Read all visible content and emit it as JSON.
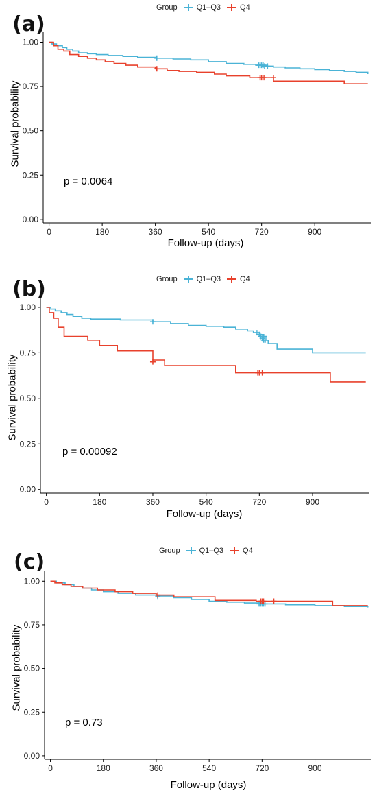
{
  "chart_data": [
    {
      "panel": "(a)",
      "type": "line",
      "step": true,
      "xlabel": "Follow-up (days)",
      "ylabel": "Survival probability",
      "xlim": [
        -20,
        1090
      ],
      "ylim": [
        -0.02,
        1.06
      ],
      "xticks": [
        0,
        180,
        360,
        540,
        720,
        900
      ],
      "yticks": [
        0.0,
        0.25,
        0.5,
        0.75,
        1.0
      ],
      "ytick_labels": [
        "0.00",
        "0.25",
        "0.50",
        "0.75",
        "1.00"
      ],
      "annotation": "p = 0.0064",
      "legend": {
        "title": "Group",
        "position": "top",
        "entries": [
          "Q1–Q3",
          "Q4"
        ]
      },
      "series": [
        {
          "name": "Q1–Q3",
          "color": "#4AB3D6",
          "x": [
            0,
            10,
            25,
            45,
            60,
            80,
            100,
            130,
            160,
            200,
            250,
            300,
            360,
            420,
            480,
            540,
            600,
            660,
            700,
            740,
            760,
            800,
            850,
            900,
            950,
            1000,
            1040,
            1080
          ],
          "y": [
            1.0,
            0.99,
            0.98,
            0.97,
            0.96,
            0.95,
            0.94,
            0.935,
            0.93,
            0.925,
            0.92,
            0.915,
            0.91,
            0.905,
            0.9,
            0.89,
            0.88,
            0.875,
            0.87,
            0.865,
            0.86,
            0.855,
            0.85,
            0.845,
            0.84,
            0.835,
            0.83,
            0.82
          ],
          "censor_x": [
            365,
            710,
            715,
            720,
            725,
            730,
            740
          ],
          "censor_y": [
            0.91,
            0.87,
            0.87,
            0.87,
            0.87,
            0.865,
            0.865
          ]
        },
        {
          "name": "Q4",
          "color": "#E8412C",
          "x": [
            0,
            15,
            30,
            50,
            70,
            100,
            130,
            160,
            190,
            220,
            260,
            300,
            360,
            400,
            440,
            500,
            560,
            600,
            680,
            760,
            1000,
            1080
          ],
          "y": [
            1.0,
            0.98,
            0.96,
            0.95,
            0.93,
            0.92,
            0.91,
            0.9,
            0.89,
            0.88,
            0.87,
            0.86,
            0.85,
            0.84,
            0.835,
            0.83,
            0.82,
            0.81,
            0.8,
            0.78,
            0.765,
            0.765
          ],
          "censor_x": [
            365,
            715,
            720,
            725,
            730,
            760
          ],
          "censor_y": [
            0.85,
            0.8,
            0.8,
            0.8,
            0.8,
            0.8
          ]
        }
      ]
    },
    {
      "panel": "(b)",
      "type": "line",
      "step": true,
      "xlabel": "Follow-up (days)",
      "ylabel": "Survival probability",
      "xlim": [
        -20,
        1090
      ],
      "ylim": [
        -0.02,
        1.06
      ],
      "xticks": [
        0,
        180,
        360,
        540,
        720,
        900
      ],
      "yticks": [
        0.0,
        0.25,
        0.5,
        0.75,
        1.0
      ],
      "ytick_labels": [
        "0.00",
        "0.25",
        "0.50",
        "0.75",
        "1.00"
      ],
      "annotation": "p = 0.00092",
      "legend": {
        "title": "Group",
        "position": "top",
        "entries": [
          "Q1–Q3",
          "Q4"
        ]
      },
      "series": [
        {
          "name": "Q1–Q3",
          "color": "#4AB3D6",
          "x": [
            0,
            15,
            30,
            50,
            70,
            90,
            120,
            150,
            250,
            360,
            420,
            480,
            540,
            600,
            640,
            680,
            700,
            720,
            735,
            745,
            750,
            780,
            900,
            1080
          ],
          "y": [
            1.0,
            0.99,
            0.98,
            0.97,
            0.96,
            0.95,
            0.94,
            0.935,
            0.93,
            0.92,
            0.91,
            0.9,
            0.895,
            0.89,
            0.88,
            0.87,
            0.86,
            0.85,
            0.84,
            0.82,
            0.8,
            0.77,
            0.75,
            0.75
          ],
          "censor_x": [
            360,
            710,
            715,
            720,
            725,
            730,
            735,
            740
          ],
          "censor_y": [
            0.92,
            0.86,
            0.86,
            0.85,
            0.84,
            0.83,
            0.82,
            0.82
          ]
        },
        {
          "name": "Q4",
          "color": "#E8412C",
          "x": [
            0,
            10,
            25,
            40,
            60,
            140,
            180,
            240,
            360,
            400,
            640,
            960,
            1080
          ],
          "y": [
            1.0,
            0.97,
            0.94,
            0.89,
            0.84,
            0.82,
            0.79,
            0.76,
            0.71,
            0.68,
            0.64,
            0.59,
            0.59
          ],
          "censor_x": [
            360,
            715,
            720,
            730
          ],
          "censor_y": [
            0.7,
            0.64,
            0.64,
            0.64
          ]
        }
      ]
    },
    {
      "panel": "(c)",
      "type": "line",
      "step": true,
      "xlabel": "Follow-up (days)",
      "ylabel": "Survival probability",
      "xlim": [
        -20,
        1090
      ],
      "ylim": [
        -0.02,
        1.06
      ],
      "xticks": [
        0,
        180,
        360,
        540,
        720,
        900
      ],
      "yticks": [
        0.0,
        0.25,
        0.5,
        0.75,
        1.0
      ],
      "ytick_labels": [
        "0.00",
        "0.25",
        "0.50",
        "0.75",
        "1.00"
      ],
      "annotation": "p = 0.73",
      "legend": {
        "title": "Group",
        "position": "top",
        "entries": [
          "Q1–Q3",
          "Q4"
        ]
      },
      "series": [
        {
          "name": "Q1–Q3",
          "color": "#4AB3D6",
          "x": [
            0,
            20,
            50,
            80,
            110,
            140,
            180,
            230,
            290,
            360,
            420,
            480,
            540,
            600,
            660,
            720,
            800,
            900,
            1000,
            1080
          ],
          "y": [
            1.0,
            0.99,
            0.98,
            0.97,
            0.96,
            0.95,
            0.94,
            0.93,
            0.92,
            0.915,
            0.905,
            0.895,
            0.885,
            0.88,
            0.875,
            0.87,
            0.865,
            0.86,
            0.855,
            0.85
          ],
          "censor_x": [
            365,
            710,
            715,
            720,
            725,
            730
          ],
          "censor_y": [
            0.91,
            0.87,
            0.87,
            0.87,
            0.87,
            0.87
          ]
        },
        {
          "name": "Q4",
          "color": "#E8412C",
          "x": [
            0,
            15,
            40,
            70,
            110,
            160,
            220,
            280,
            360,
            420,
            560,
            700,
            760,
            960,
            1080
          ],
          "y": [
            1.0,
            0.99,
            0.98,
            0.97,
            0.96,
            0.95,
            0.94,
            0.93,
            0.92,
            0.91,
            0.89,
            0.885,
            0.885,
            0.86,
            0.86
          ],
          "censor_x": [
            365,
            715,
            720,
            725,
            760
          ],
          "censor_y": [
            0.92,
            0.885,
            0.885,
            0.885,
            0.885
          ]
        }
      ]
    }
  ]
}
